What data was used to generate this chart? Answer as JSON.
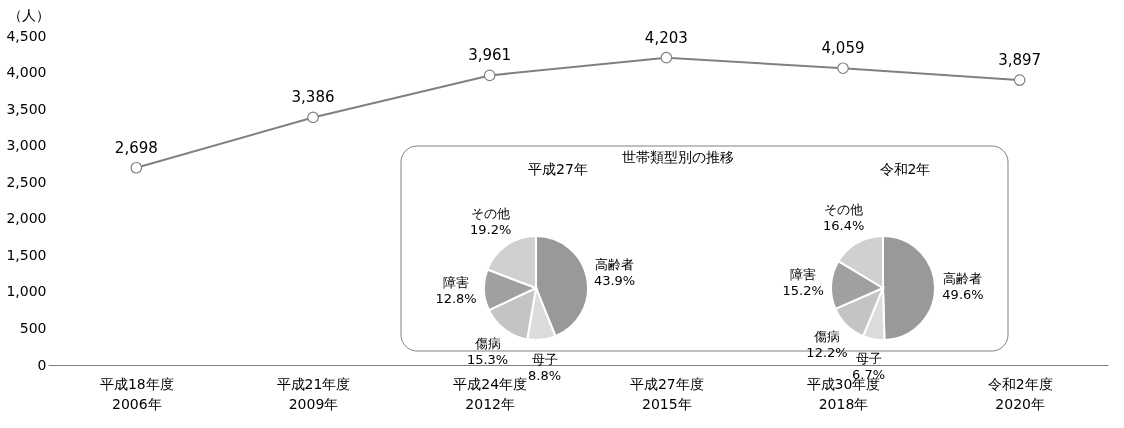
{
  "chart_data": [
    {
      "type": "line",
      "ylabel": "（人）",
      "categories": [
        "平成18年度\n2006年",
        "平成21年度\n2009年",
        "平成24年度\n2012年",
        "平成27年度\n2015年",
        "平成30年度\n2018年",
        "令和2年度\n2020年"
      ],
      "series": [
        {
          "color": "#808080",
          "values": [
            2698,
            3386,
            3961,
            4203,
            4059,
            3897
          ],
          "value_labels": [
            "2,698",
            "3,386",
            "3,961",
            "4,203",
            "4,059",
            "3,897"
          ]
        }
      ],
      "ylim": [
        0,
        4500
      ],
      "yticks": [
        0,
        500,
        {
          "value": 1000,
          "label": "1,000"
        },
        {
          "value": 1500,
          "label": "1,500"
        },
        {
          "value": 2000,
          "label": "2,000"
        },
        {
          "value": 2500,
          "label": "2,500"
        },
        {
          "value": 3000,
          "label": "3,000"
        },
        {
          "value": 3500,
          "label": "3,500"
        },
        {
          "value": 4000,
          "label": "4,000"
        },
        {
          "value": 4500,
          "label": "4,500"
        }
      ],
      "grid": false,
      "marker": "circle",
      "line_style": "solid"
    },
    {
      "type": "pie",
      "title": "平成27年",
      "annotations": [
        "世帯類型別の推移"
      ],
      "categories": [
        "高齢者",
        "母子",
        "傷病",
        "障害",
        "その他"
      ],
      "values": [
        43.9,
        8.8,
        15.3,
        12.8,
        19.2
      ],
      "colors": [
        "#999999",
        "#dcdcdc",
        "#c4c4c4",
        "#a0a0a0",
        "#d0d0d0"
      ],
      "value_labels": [
        "43.9%",
        "8.8%",
        "15.3%",
        "12.8%",
        "19.2%"
      ]
    },
    {
      "type": "pie",
      "title": "令和2年",
      "categories": [
        "高齢者",
        "母子",
        "傷病",
        "障害",
        "その他"
      ],
      "values": [
        49.6,
        6.7,
        12.2,
        15.2,
        16.4
      ],
      "colors": [
        "#999999",
        "#dcdcdc",
        "#c4c4c4",
        "#a0a0a0",
        "#d0d0d0"
      ],
      "value_labels": [
        "49.6%",
        "6.7%",
        "12.2%",
        "15.2%",
        "16.4%"
      ]
    }
  ]
}
